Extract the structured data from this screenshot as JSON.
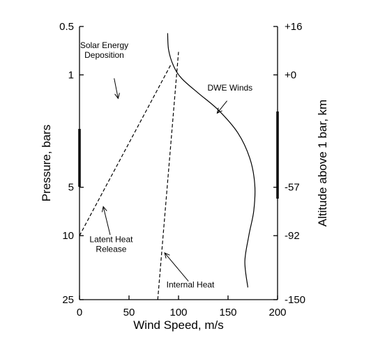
{
  "chart_data": {
    "type": "line",
    "title": "",
    "xlabel": "Wind Speed, m/s",
    "ylabel": "Pressure, bars",
    "y2label": "Altitude above 1 bar, km",
    "xlim": [
      0,
      200
    ],
    "ylim": [
      25,
      0.5
    ],
    "yscale": "log",
    "y_inverted": true,
    "grid": false,
    "legend": "none",
    "xticks": [
      "0",
      "50",
      "100",
      "150",
      "200"
    ],
    "yticks": [
      {
        "p": 0.5,
        "label": "0.5"
      },
      {
        "p": 1,
        "label": "1"
      },
      {
        "p": 5,
        "label": "5"
      },
      {
        "p": 10,
        "label": "10"
      },
      {
        "p": 25,
        "label": "25"
      }
    ],
    "y2ticks": [
      {
        "p": 0.5,
        "label": "+16"
      },
      {
        "p": 1,
        "label": "+0"
      },
      {
        "p": 5,
        "label": "-57"
      },
      {
        "p": 10,
        "label": "-92"
      },
      {
        "p": 25,
        "label": "-150"
      }
    ],
    "series": [
      {
        "name": "DWE Winds",
        "style": "solid",
        "points": [
          {
            "x": 89,
            "p": 0.55
          },
          {
            "x": 90,
            "p": 0.7
          },
          {
            "x": 95,
            "p": 0.88
          },
          {
            "x": 103,
            "p": 1.05
          },
          {
            "x": 120,
            "p": 1.3
          },
          {
            "x": 140,
            "p": 1.65
          },
          {
            "x": 160,
            "p": 2.3
          },
          {
            "x": 172,
            "p": 3.3
          },
          {
            "x": 177,
            "p": 4.8
          },
          {
            "x": 176,
            "p": 7.0
          },
          {
            "x": 171,
            "p": 10.0
          },
          {
            "x": 167,
            "p": 14.5
          },
          {
            "x": 170,
            "p": 21.0
          }
        ]
      },
      {
        "name": "Solar Energy Deposition",
        "style": "dashed",
        "points": [
          {
            "x": 0,
            "p": 10.0
          },
          {
            "x": 92,
            "p": 0.87
          }
        ]
      },
      {
        "name": "Internal Heat",
        "style": "dashed",
        "points": [
          {
            "x": 79,
            "p": 25.0
          },
          {
            "x": 100,
            "p": 0.72
          }
        ]
      }
    ],
    "annotations": [
      {
        "name": "solar-energy-deposition-label",
        "lines": [
          "Solar Energy",
          "Deposition"
        ],
        "x": 25,
        "p": 0.68,
        "arrow_from": {
          "x": 35,
          "p": 1.05
        },
        "arrow_to": {
          "x": 39,
          "p": 1.4
        }
      },
      {
        "name": "dwe-winds-label",
        "lines": [
          "DWE Winds"
        ],
        "x": 152,
        "p": 1.25,
        "arrow_from": {
          "x": 149,
          "p": 1.45
        },
        "arrow_to": {
          "x": 139,
          "p": 1.73
        }
      },
      {
        "name": "latent-heat-release-label",
        "lines": [
          "Latent Heat",
          "Release"
        ],
        "x": 32,
        "p": 11.0,
        "arrow_from": {
          "x": 31,
          "p": 9.9
        },
        "arrow_to": {
          "x": 24,
          "p": 6.6
        }
      },
      {
        "name": "internal-heat-label",
        "lines": [
          "Internal Heat"
        ],
        "x": 112,
        "p": 21.0,
        "arrow_from": {
          "x": 110,
          "p": 19.2
        },
        "arrow_to": {
          "x": 86,
          "p": 12.8
        }
      }
    ]
  }
}
